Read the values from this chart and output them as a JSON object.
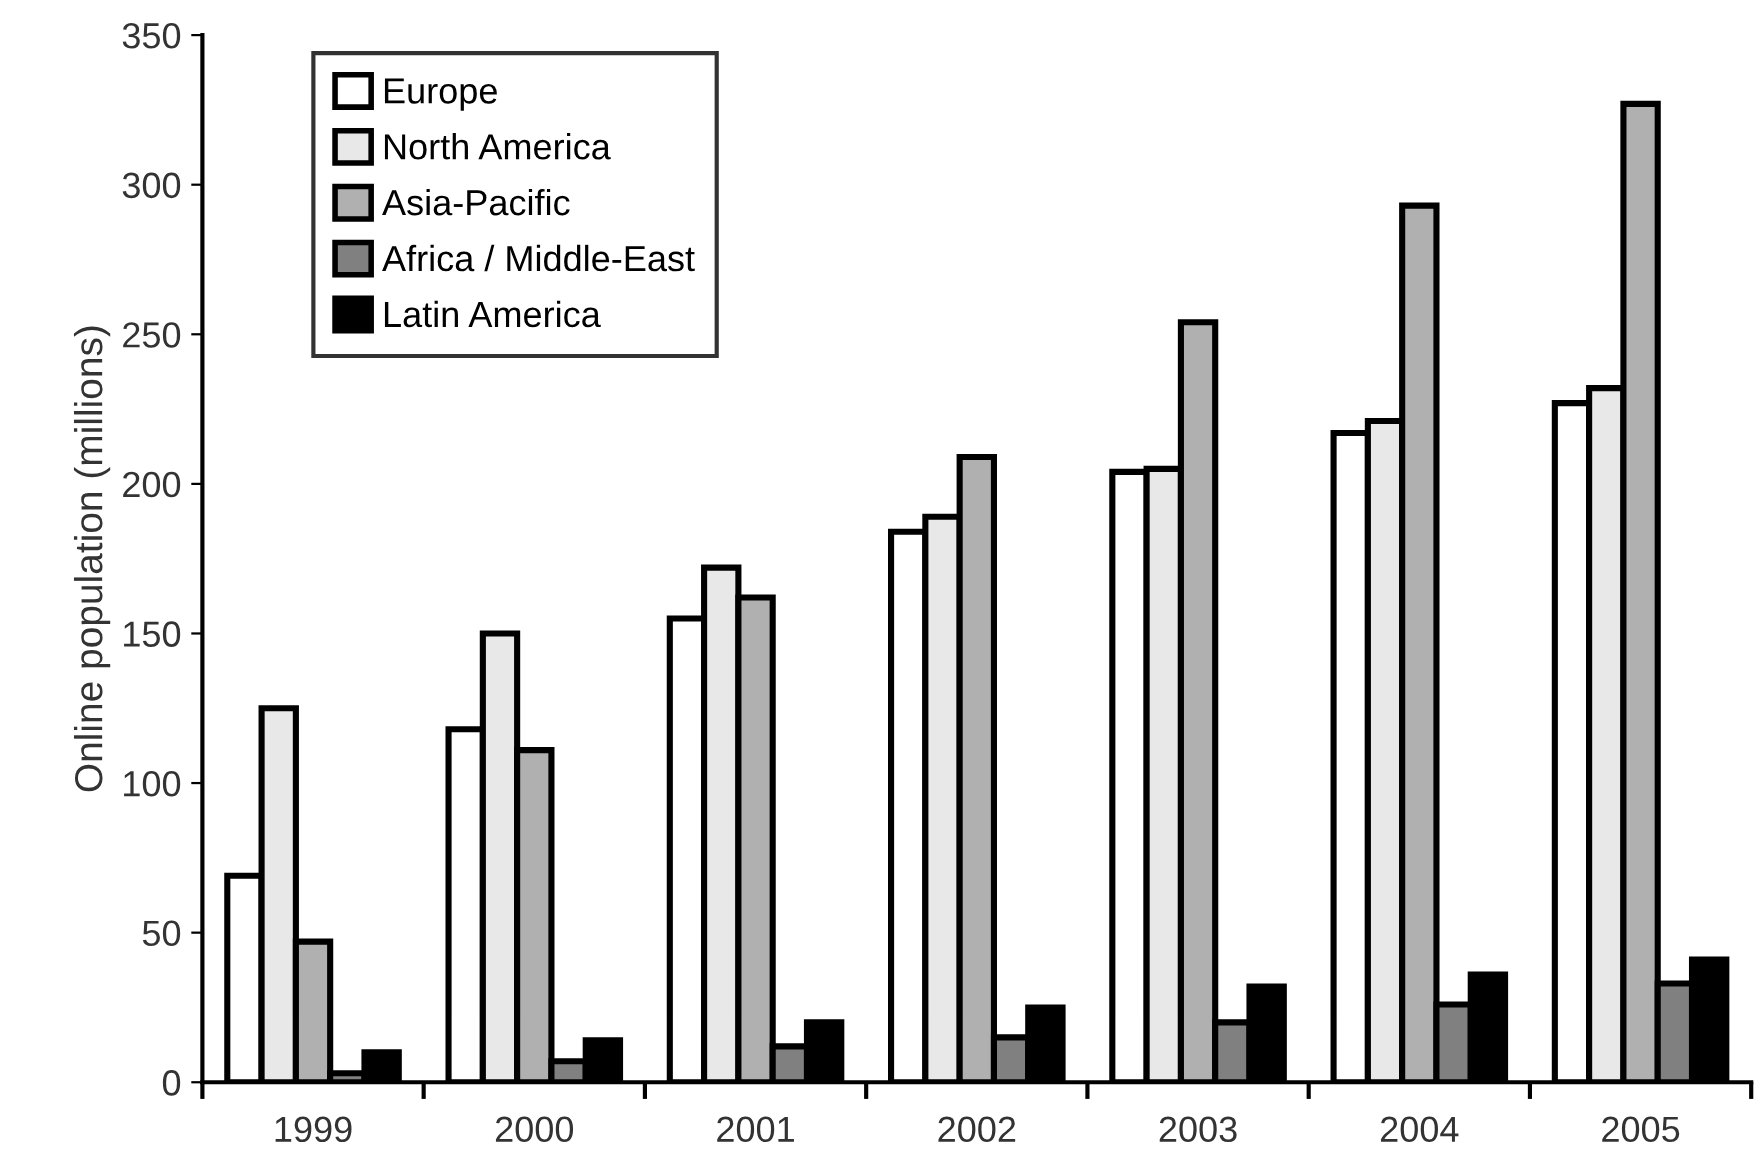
{
  "chart_data": {
    "type": "bar",
    "ylabel": "Online population (millions)",
    "categories": [
      "1999",
      "2000",
      "2001",
      "2002",
      "2003",
      "2004",
      "2005"
    ],
    "series": [
      {
        "name": "Europe",
        "color": "#ffffff",
        "values": [
          69,
          118,
          155,
          184,
          204,
          217,
          227
        ]
      },
      {
        "name": "North America",
        "color": "#e8e8e8",
        "values": [
          125,
          150,
          172,
          189,
          205,
          221,
          232
        ]
      },
      {
        "name": "Asia-Pacific",
        "color": "#b0b0b0",
        "values": [
          47,
          111,
          162,
          209,
          254,
          293,
          327
        ]
      },
      {
        "name": "Africa / Middle-East",
        "color": "#808080",
        "values": [
          3,
          7,
          12,
          15,
          20,
          26,
          33
        ]
      },
      {
        "name": "Latin America",
        "color": "#000000",
        "values": [
          10,
          14,
          20,
          25,
          32,
          36,
          41
        ]
      }
    ],
    "ylim": [
      0,
      350
    ],
    "yticks": [
      0,
      50,
      100,
      150,
      200,
      250,
      300,
      350
    ],
    "grid": false,
    "legend": "top left"
  }
}
